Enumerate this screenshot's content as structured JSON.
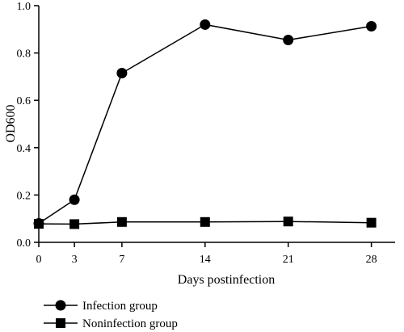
{
  "chart_data": {
    "type": "line",
    "title": "",
    "xlabel": "Days postinfection",
    "ylabel": "OD600",
    "x": [
      0,
      3,
      7,
      14,
      21,
      28
    ],
    "xlim": [
      0,
      30
    ],
    "ylim": [
      0,
      1.0
    ],
    "x_ticks": [
      "0",
      "3",
      "7",
      "14",
      "21",
      "28"
    ],
    "y_ticks": [
      "0.0",
      "0.2",
      "0.4",
      "0.6",
      "0.8",
      "1.0"
    ],
    "grid": false,
    "legend_position": "bottom-left",
    "series": [
      {
        "name": "Infection group",
        "marker": "circle",
        "values": [
          0.08,
          0.18,
          0.715,
          0.92,
          0.855,
          0.913
        ]
      },
      {
        "name": "Noninfection group",
        "marker": "square",
        "values": [
          0.078,
          0.077,
          0.086,
          0.086,
          0.088,
          0.083
        ]
      }
    ],
    "colors": {
      "line": "#000000",
      "marker": "#000000"
    }
  }
}
